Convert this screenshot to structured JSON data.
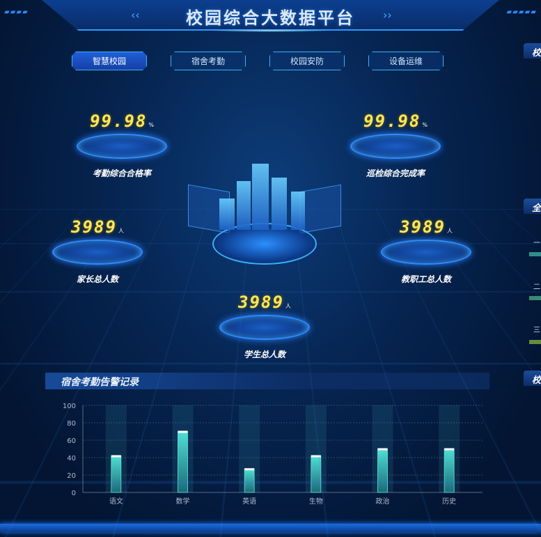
{
  "header": {
    "title": "校园综合大数据平台"
  },
  "tabs": [
    {
      "label": "智慧校园",
      "active": true
    },
    {
      "label": "宿舍考勤"
    },
    {
      "label": "校园安防"
    },
    {
      "label": "设备运维"
    }
  ],
  "stats": [
    {
      "value": "99.98",
      "unit": "%",
      "label": "考勤综合合格率"
    },
    {
      "value": "99.98",
      "unit": "%",
      "label": "巡检综合完成率"
    },
    {
      "value": "3989",
      "unit": "人",
      "label": "家长总人数"
    },
    {
      "value": "3989",
      "unit": "人",
      "label": "教职工总人数"
    },
    {
      "value": "3989",
      "unit": "人",
      "label": "学生总人数"
    }
  ],
  "right_panels": [
    {
      "title": "校"
    },
    {
      "title": "全"
    },
    {
      "title": "校"
    }
  ],
  "right_list": [
    "一",
    "二",
    "三"
  ],
  "colors": {
    "bar": "#3fc8c0",
    "accent": "#2a9bff",
    "value": "#ffe65c"
  },
  "chart_title": "宿舍考勤告警记录",
  "chart_data": {
    "type": "bar",
    "title": "宿舍考勤告警记录",
    "categories": [
      "语文",
      "数学",
      "英语",
      "生物",
      "政治",
      "历史"
    ],
    "values": [
      42,
      70,
      27,
      42,
      50,
      50
    ],
    "yticks": [
      0,
      20,
      40,
      60,
      80,
      100
    ],
    "ylim": [
      0,
      100
    ],
    "grid": true
  }
}
